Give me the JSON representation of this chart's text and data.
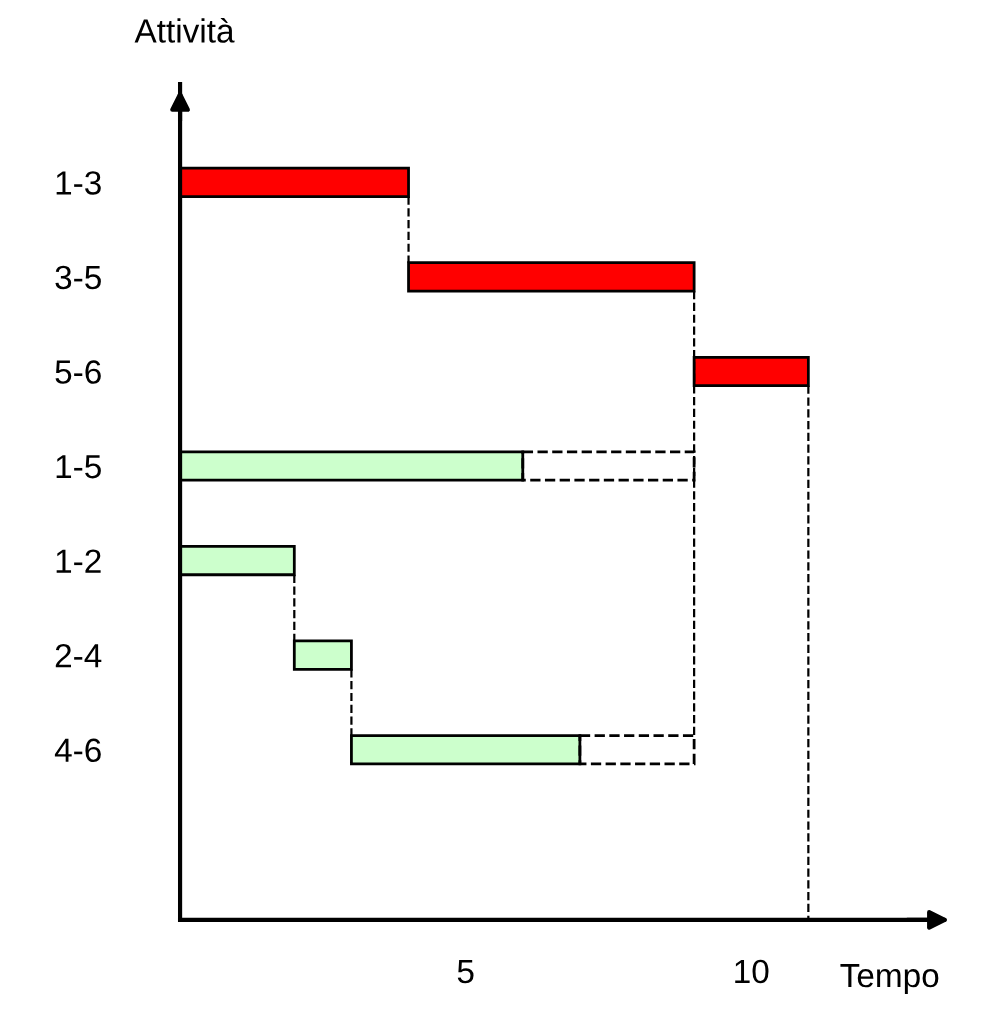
{
  "chart_data": {
    "type": "bar",
    "orientation": "horizontal",
    "xlabel": "Tempo",
    "ylabel": "Attività",
    "categories": [
      "1-3",
      "3-5",
      "5-6",
      "1-5",
      "1-2",
      "2-4",
      "4-6"
    ],
    "series": [
      {
        "values": [
          4,
          5,
          2,
          6,
          2,
          1,
          4
        ],
        "base": [
          0,
          4,
          9,
          0,
          0,
          2,
          3
        ],
        "colors": [
          "#ff0000",
          "#ff0000",
          "#ff0000",
          "#ccffcc",
          "#ccffcc",
          "#ccffcc",
          "#ccffcc"
        ],
        "line_style": "solid"
      },
      {
        "values": [
          null,
          null,
          null,
          3,
          null,
          null,
          2
        ],
        "base": [
          null,
          null,
          null,
          6,
          null,
          null,
          7
        ],
        "color": "#000000",
        "line_style": "dashed"
      }
    ],
    "ref_lines": [
      {
        "axis": "x",
        "value": 11,
        "color": "#000000",
        "line_style": "dashed"
      }
    ],
    "xlim": [
      0,
      13.3
    ],
    "xticks": [
      5,
      10
    ],
    "grid": false,
    "legend": false
  }
}
